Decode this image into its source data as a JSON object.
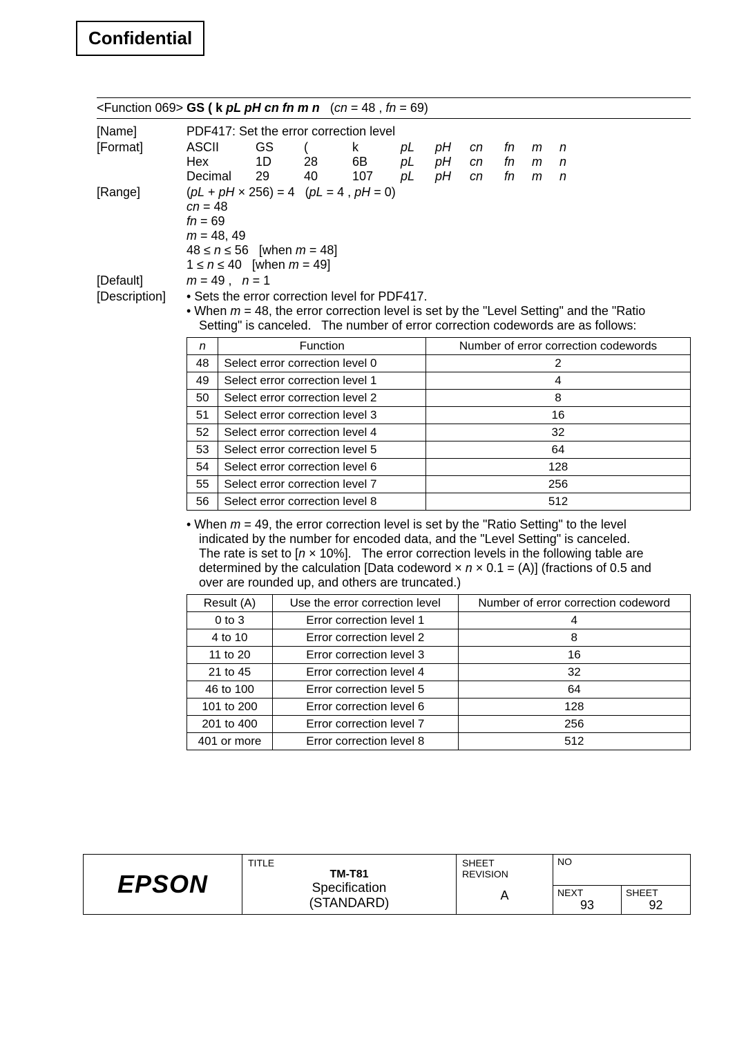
{
  "confidential": "Confidential",
  "header": {
    "prefix": "<Function 069>",
    "cmd_bold": "GS ( k",
    "params_ital": "pL pH cn fn m n",
    "suffix": "(cn = 48 , fn = 69)"
  },
  "labels": {
    "name": "[Name]",
    "format": "[Format]",
    "range": "[Range]",
    "default": "[Default]",
    "description": "[Description]"
  },
  "name_text": "PDF417: Set the error correction level",
  "format": {
    "rows": [
      [
        "ASCII",
        "GS",
        "(",
        "k",
        "pL",
        "pH",
        "cn",
        "fn",
        "m",
        "n"
      ],
      [
        "Hex",
        "1D",
        "28",
        "6B",
        "pL",
        "pH",
        "cn",
        "fn",
        "m",
        "n"
      ],
      [
        "Decimal",
        "29",
        "40",
        "107",
        "pL",
        "pH",
        "cn",
        "fn",
        "m",
        "n"
      ]
    ]
  },
  "range": {
    "line1": "(pL + pH × 256) = 4   (pL = 4 , pH = 0)",
    "line2": "cn = 48",
    "line3": "fn = 69",
    "line4": "m = 48, 49",
    "line5": "48 ≤ n ≤ 56   [when m = 48]",
    "line6": "1 ≤ n ≤ 40   [when m = 49]"
  },
  "default_text": "m = 49 ,    n = 1",
  "desc1": "Sets the error correction level for PDF417.",
  "desc2a": "When ",
  "desc2b": "m",
  "desc2c": " = 48, the error correction level is set by the \"Level Setting\" and the \"Ratio Setting\" is canceled.   The number of error correction codewords are as follows:",
  "table1": {
    "headers": [
      "n",
      "Function",
      "Number of error correction codewords"
    ],
    "rows": [
      [
        "48",
        "Select error correction level 0",
        "2"
      ],
      [
        "49",
        "Select error correction level 1",
        "4"
      ],
      [
        "50",
        "Select error correction level 2",
        "8"
      ],
      [
        "51",
        "Select error correction level 3",
        "16"
      ],
      [
        "52",
        "Select error correction level 4",
        "32"
      ],
      [
        "53",
        "Select error correction level 5",
        "64"
      ],
      [
        "54",
        "Select error correction level 6",
        "128"
      ],
      [
        "55",
        "Select error correction level 7",
        "256"
      ],
      [
        "56",
        "Select error correction level 8",
        "512"
      ]
    ],
    "col_widths": [
      "70px",
      "auto",
      "auto"
    ]
  },
  "desc3": "When m = 49, the error correction level is set by the \"Ratio Setting\" to the level indicated by the number for encoded data, and the \"Level Setting\" is canceled. The rate is set to [n × 10%].   The error correction levels in the following table are determined by the calculation [Data codeword × n × 0.1 = (A)] (fractions of 0.5 and over are rounded up, and others are truncated.)",
  "table2": {
    "headers": [
      "Result (A)",
      "Use the error correction level",
      "Number of error correction codeword"
    ],
    "rows": [
      [
        "0 to 3",
        "Error correction level 1",
        "4"
      ],
      [
        "4 to 10",
        "Error correction level 2",
        "8"
      ],
      [
        "11 to 20",
        "Error correction level 3",
        "16"
      ],
      [
        "21 to 45",
        "Error correction level 4",
        "32"
      ],
      [
        "46 to 100",
        "Error correction level 5",
        "64"
      ],
      [
        "101 to 200",
        "Error correction level 6",
        "128"
      ],
      [
        "201 to 400",
        "Error correction level 7",
        "256"
      ],
      [
        "401 or more",
        "Error correction level 8",
        "512"
      ]
    ]
  },
  "footer": {
    "logo": "EPSON",
    "title_label": "TITLE",
    "title1": "TM-T81",
    "title2": "Specification",
    "title3": "(STANDARD)",
    "sheet_rev_label": "SHEET\nREVISION",
    "sheet_rev_value": "A",
    "no_label": "NO",
    "next_label": "NEXT",
    "next_value": "93",
    "sheet_label": "SHEET",
    "sheet_value": "92"
  }
}
